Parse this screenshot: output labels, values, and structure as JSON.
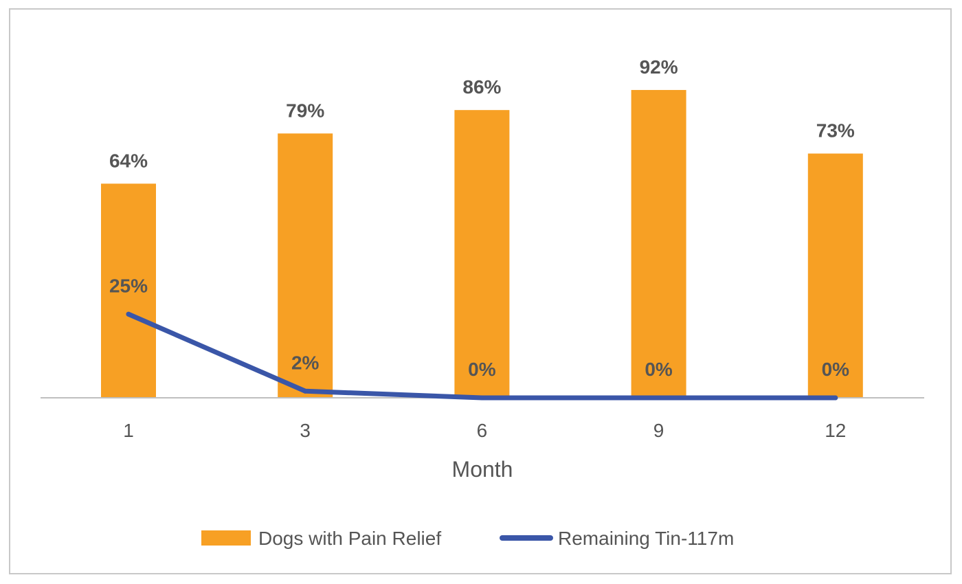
{
  "chart_data": {
    "type": "bar",
    "categories": [
      "1",
      "3",
      "6",
      "9",
      "12"
    ],
    "xlabel": "Month",
    "ylabel": "",
    "ylim": [
      0,
      100
    ],
    "grid": false,
    "legend_position": "bottom",
    "series": [
      {
        "name": "Dogs with Pain Relief",
        "type": "bar",
        "color": "#F7A024",
        "values": [
          64,
          79,
          86,
          92,
          73
        ],
        "labels": [
          "64%",
          "79%",
          "86%",
          "92%",
          "73%"
        ]
      },
      {
        "name": "Remaining Tin-117m",
        "type": "line",
        "color": "#3A56A8",
        "values": [
          25,
          2,
          0,
          0,
          0
        ],
        "labels": [
          "25%",
          "2%",
          "0%",
          "0%",
          "0%"
        ]
      }
    ]
  }
}
